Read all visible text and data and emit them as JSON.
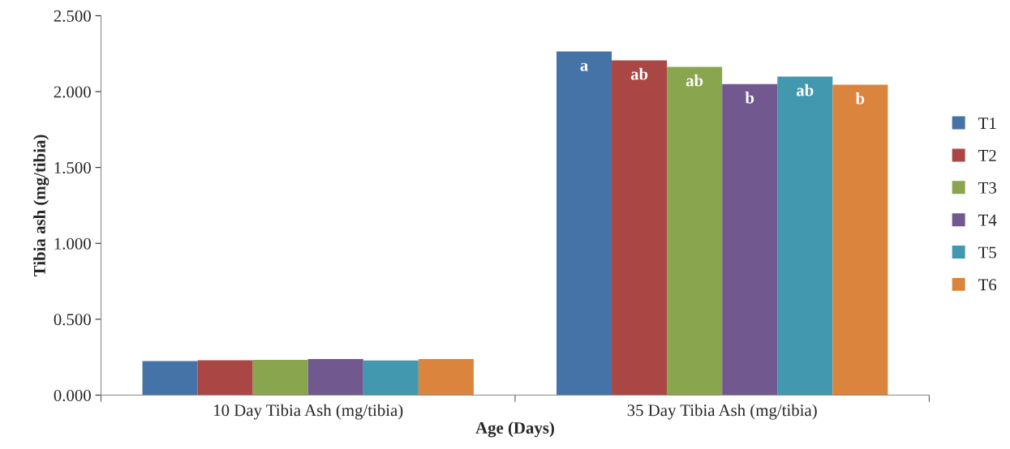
{
  "chart_data": {
    "type": "bar",
    "xlabel": "Age (Days)",
    "ylabel": "Tibia ash (mg/tibia)",
    "categories": [
      "10 Day Tibia Ash (mg/tibia)",
      "35 Day Tibia Ash (mg/tibia)"
    ],
    "series": [
      {
        "name": "T1",
        "color": "#4572a7",
        "values": [
          0.225,
          2.264
        ],
        "value_labels": [
          null,
          "a"
        ]
      },
      {
        "name": "T2",
        "color": "#aa4643",
        "values": [
          0.23,
          2.206
        ],
        "value_labels": [
          null,
          "ab"
        ]
      },
      {
        "name": "T3",
        "color": "#89a54e",
        "values": [
          0.232,
          2.163
        ],
        "value_labels": [
          null,
          "ab"
        ]
      },
      {
        "name": "T4",
        "color": "#71588f",
        "values": [
          0.238,
          2.05
        ],
        "value_labels": [
          null,
          "b"
        ]
      },
      {
        "name": "T5",
        "color": "#4198af",
        "values": [
          0.228,
          2.099
        ],
        "value_labels": [
          null,
          "ab"
        ]
      },
      {
        "name": "T6",
        "color": "#db843d",
        "values": [
          0.238,
          2.045
        ],
        "value_labels": [
          null,
          "b"
        ]
      }
    ],
    "ylim": [
      0,
      2.5
    ],
    "yticks": [
      {
        "value": 0,
        "label": "0.000"
      },
      {
        "value": 0.5,
        "label": "0.500"
      },
      {
        "value": 1.0,
        "label": "1.000"
      },
      {
        "value": 1.5,
        "label": "1.500"
      },
      {
        "value": 2.0,
        "label": "2.000"
      },
      {
        "value": 2.5,
        "label": "2.500"
      }
    ],
    "grid": false,
    "legend": "right"
  }
}
